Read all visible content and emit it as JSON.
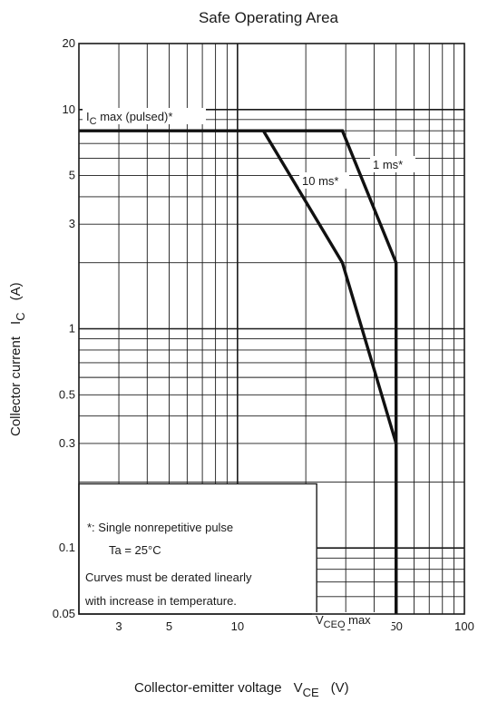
{
  "chart_data": {
    "type": "line",
    "title": "Safe Operating Area",
    "xlabel": {
      "prefix": "Collector-emitter voltage",
      "symbol": "V",
      "subscript": "CE",
      "unit": "(V)"
    },
    "ylabel": {
      "prefix": "Collector current",
      "symbol": "I",
      "subscript": "C",
      "unit": "(A)"
    },
    "x_scale": "log",
    "y_scale": "log",
    "xlim": [
      2,
      100
    ],
    "ylim": [
      0.05,
      20
    ],
    "x_ticks": [
      {
        "value": 3,
        "label": "3"
      },
      {
        "value": 5,
        "label": "5"
      },
      {
        "value": 10,
        "label": "10"
      },
      {
        "value": 30,
        "label": "30"
      },
      {
        "value": 50,
        "label": "50"
      },
      {
        "value": 100,
        "label": "100"
      }
    ],
    "y_ticks": [
      {
        "value": 0.05,
        "label": "0.05"
      },
      {
        "value": 0.1,
        "label": "0.1"
      },
      {
        "value": 0.3,
        "label": "0.3"
      },
      {
        "value": 0.5,
        "label": "0.5"
      },
      {
        "value": 1,
        "label": "1"
      },
      {
        "value": 3,
        "label": "3"
      },
      {
        "value": 5,
        "label": "5"
      },
      {
        "value": 10,
        "label": "10"
      },
      {
        "value": 20,
        "label": "20"
      }
    ],
    "grid": true,
    "series": [
      {
        "name": "10 ms*",
        "points": [
          [
            2,
            8
          ],
          [
            13,
            8
          ],
          [
            29,
            2
          ],
          [
            50,
            0.3
          ],
          [
            50,
            0.05
          ]
        ]
      },
      {
        "name": "1 ms*",
        "points": [
          [
            13,
            8
          ],
          [
            29,
            8
          ],
          [
            50,
            2
          ],
          [
            50,
            0.05
          ]
        ]
      }
    ],
    "annotations": {
      "ic_max": {
        "symbol": "I",
        "subscript": "C",
        "text": " max (pulsed)*"
      },
      "vceo_max": {
        "symbol": "V",
        "subscript": "CEO",
        "text": " max"
      },
      "curve_1ms": "1 ms*",
      "curve_10ms": "10 ms*"
    },
    "notes": [
      "*:  Single nonrepetitive pulse",
      "Ta = 25°C",
      "Curves must be derated linearly",
      "with increase in temperature."
    ]
  }
}
